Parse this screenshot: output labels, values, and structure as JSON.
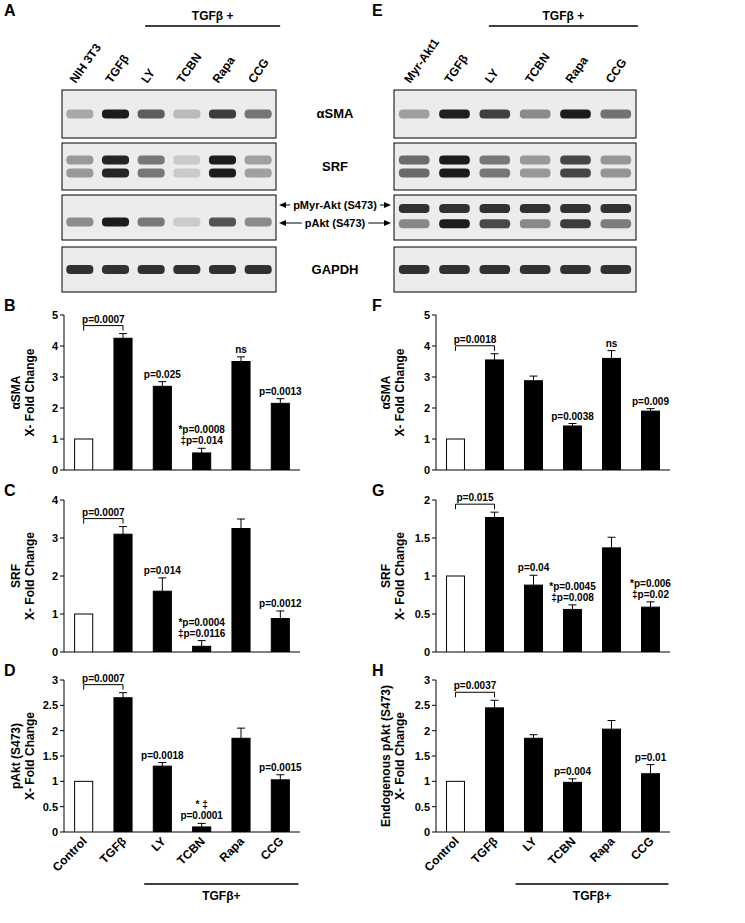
{
  "chart_data": [
    {
      "type": "bar",
      "panel": "B",
      "y_label": [
        "αSMA",
        "X- Fold Change"
      ],
      "categories": [
        null,
        null,
        null,
        null,
        null,
        null
      ],
      "values": [
        1,
        4.25,
        2.7,
        0.55,
        3.5,
        2.15
      ],
      "errors": [
        null,
        0.15,
        0.15,
        0.15,
        0.15,
        0.15
      ],
      "colors": [
        "#ffffff",
        "#000000",
        "#000000",
        "#000000",
        "#000000",
        "#000000"
      ],
      "ylim": [
        0,
        5
      ],
      "yticks": [
        0,
        1,
        2,
        3,
        4,
        5
      ],
      "grid": false,
      "tick_labels": "y",
      "bracket_label": "p=0.0007",
      "annotations": [
        null,
        null,
        [
          "p=0.025"
        ],
        [
          "*p=0.0008",
          "‡p=0.014"
        ],
        [
          "ns"
        ],
        [
          "p=0.0013"
        ]
      ]
    },
    {
      "type": "bar",
      "panel": "C",
      "y_label": [
        "SRF",
        "X- Fold Change"
      ],
      "categories": [
        null,
        null,
        null,
        null,
        null,
        null
      ],
      "values": [
        1,
        3.1,
        1.6,
        0.15,
        3.25,
        0.88
      ],
      "errors": [
        null,
        0.2,
        0.35,
        0.15,
        0.25,
        0.2
      ],
      "colors": [
        "#ffffff",
        "#000000",
        "#000000",
        "#000000",
        "#000000",
        "#000000"
      ],
      "ylim": [
        0,
        4
      ],
      "yticks": [
        0,
        1,
        2,
        3,
        4
      ],
      "grid": false,
      "tick_labels": "y",
      "bracket_label": "p=0.0007",
      "annotations": [
        null,
        null,
        [
          "p=0.014"
        ],
        [
          "*p=0.0004",
          "‡p=0.0116"
        ],
        null,
        [
          "p=0.0012"
        ]
      ]
    },
    {
      "type": "bar",
      "panel": "D",
      "y_label": [
        "pAkt (S473)",
        "X- Fold Change"
      ],
      "categories": [
        "Control",
        "TGFβ",
        "LY",
        "TCBN",
        "Rapa",
        "CCG"
      ],
      "values": [
        1,
        2.65,
        1.3,
        0.1,
        1.85,
        1.03
      ],
      "errors": [
        null,
        0.1,
        0.07,
        0.07,
        0.2,
        0.1
      ],
      "colors": [
        "#ffffff",
        "#000000",
        "#000000",
        "#000000",
        "#000000",
        "#000000"
      ],
      "ylim": [
        0,
        3
      ],
      "yticks": [
        0,
        0.5,
        1,
        1.5,
        2,
        2.5,
        3
      ],
      "grid": false,
      "bracket_label": "p=0.0007",
      "group_label": "TGFβ+",
      "annotations": [
        null,
        null,
        [
          "p=0.0018"
        ],
        [
          "* ‡",
          "p=0.0001"
        ],
        null,
        [
          "p=0.0015"
        ]
      ]
    },
    {
      "type": "bar",
      "panel": "F",
      "y_label": [
        "αSMA",
        "X- Fold Change"
      ],
      "categories": [
        null,
        null,
        null,
        null,
        null,
        null
      ],
      "values": [
        1,
        3.55,
        2.88,
        1.42,
        3.6,
        1.9
      ],
      "errors": [
        null,
        0.2,
        0.15,
        0.08,
        0.25,
        0.08
      ],
      "colors": [
        "#ffffff",
        "#000000",
        "#000000",
        "#000000",
        "#000000",
        "#000000"
      ],
      "ylim": [
        0,
        5
      ],
      "yticks": [
        0,
        1,
        2,
        3,
        4,
        5
      ],
      "grid": false,
      "tick_labels": "y",
      "bracket_label": "p=0.0018",
      "annotations": [
        null,
        null,
        null,
        [
          "p=0.0038"
        ],
        [
          "ns"
        ],
        [
          "p=0.009"
        ]
      ]
    },
    {
      "type": "bar",
      "panel": "G",
      "y_label": [
        "SRF",
        "X- Fold Change"
      ],
      "categories": [
        null,
        null,
        null,
        null,
        null,
        null
      ],
      "values": [
        1,
        1.77,
        0.88,
        0.56,
        1.37,
        0.59
      ],
      "errors": [
        null,
        0.07,
        0.13,
        0.06,
        0.14,
        0.07
      ],
      "colors": [
        "#ffffff",
        "#000000",
        "#000000",
        "#000000",
        "#000000",
        "#000000"
      ],
      "ylim": [
        0,
        2
      ],
      "yticks": [
        0,
        0.5,
        1,
        1.5,
        2
      ],
      "grid": false,
      "tick_labels": "y",
      "bracket_label": "p=0.015",
      "annotations": [
        null,
        null,
        [
          "p=0.04"
        ],
        [
          "*p=0.0045",
          "‡p=0.008"
        ],
        null,
        [
          "*p=0.006",
          "‡p=0.02"
        ]
      ]
    },
    {
      "type": "bar",
      "panel": "H",
      "y_label": [
        "Endogenous pAkt (S473)",
        "X- Fold Change"
      ],
      "categories": [
        "Control",
        "TGFβ",
        "LY",
        "TCBN",
        "Rapa",
        "CCG"
      ],
      "values": [
        1,
        2.45,
        1.85,
        0.98,
        2.03,
        1.15
      ],
      "errors": [
        null,
        0.15,
        0.07,
        0.07,
        0.17,
        0.18
      ],
      "colors": [
        "#ffffff",
        "#000000",
        "#000000",
        "#000000",
        "#000000",
        "#000000"
      ],
      "ylim": [
        0,
        3
      ],
      "yticks": [
        0,
        0.5,
        1,
        1.5,
        2,
        2.5,
        3
      ],
      "grid": false,
      "bracket_label": "p=0.0037",
      "group_label": "TGFβ+",
      "annotations": [
        null,
        null,
        null,
        [
          "p=0.004"
        ],
        null,
        [
          "p=0.01"
        ]
      ]
    }
  ],
  "blots": {
    "row_labels": [
      "αSMA",
      "SRF",
      "pMyr-Akt (S473)",
      "pAkt (S473)",
      "GAPDH"
    ],
    "panels": [
      {
        "panel": "A",
        "group_label": "TGFβ +",
        "lanes": [
          "NIH 3T3",
          "TGFβ",
          "LY",
          "TCBN",
          "Rapa",
          "CCG"
        ]
      },
      {
        "panel": "E",
        "group_label": "TGFβ +",
        "lanes": [
          "Myr-Akt1",
          "TGFβ",
          "LY",
          "TCBN",
          "Rapa",
          "CCG"
        ]
      }
    ]
  }
}
